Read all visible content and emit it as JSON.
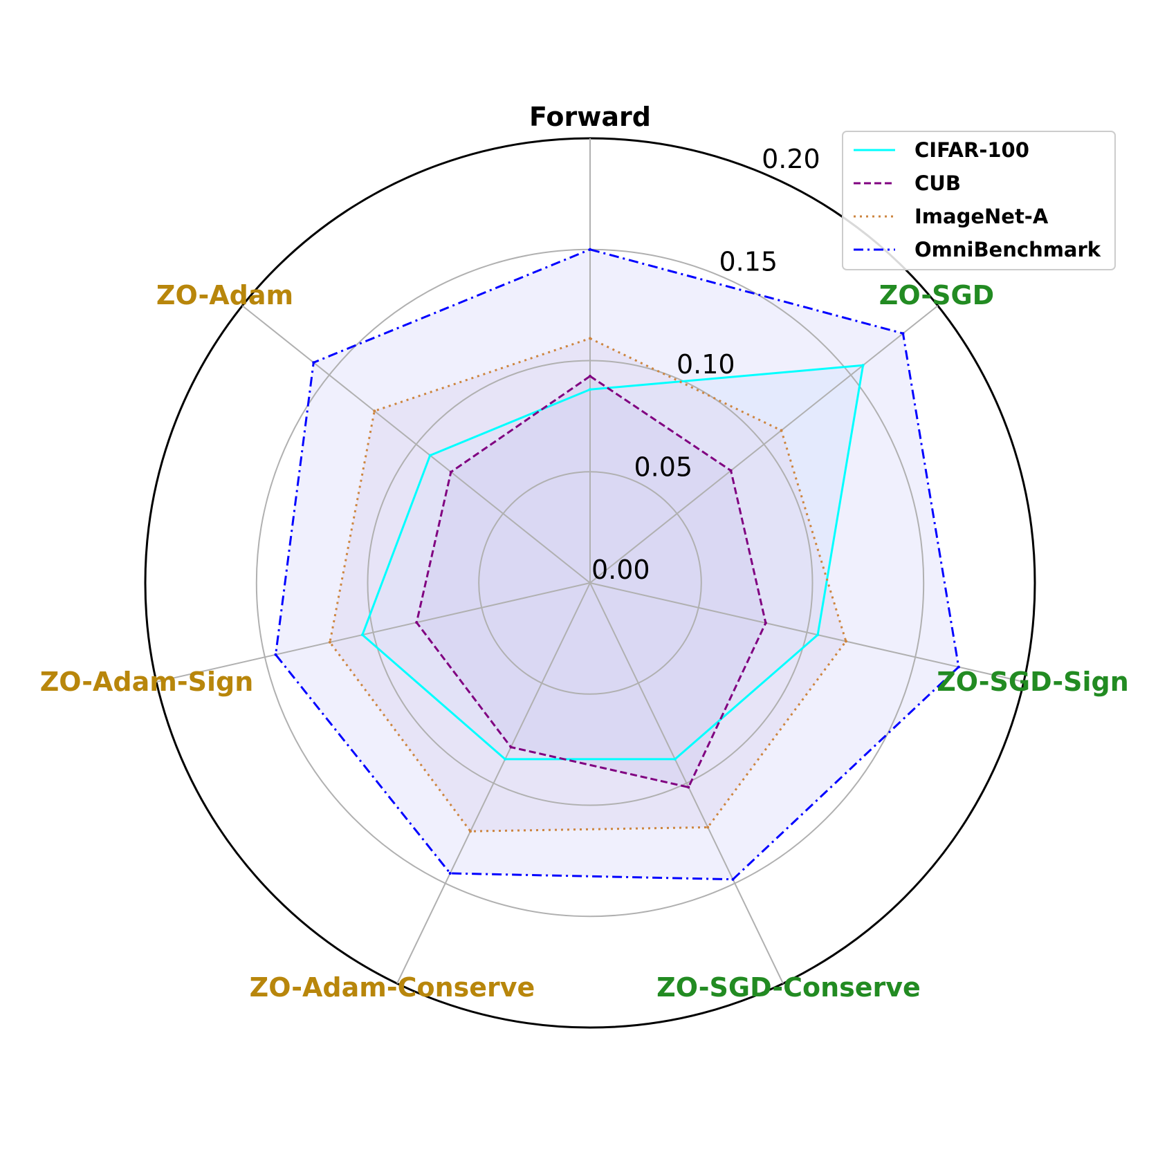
{
  "chart_data": {
    "type": "radar",
    "axes": [
      {
        "label": "Forward",
        "color": "#000000"
      },
      {
        "label": "ZO-SGD",
        "color": "#228b22"
      },
      {
        "label": "ZO-SGD-Sign",
        "color": "#228b22"
      },
      {
        "label": "ZO-SGD-Conserve",
        "color": "#228b22"
      },
      {
        "label": "ZO-Adam-Conserve",
        "color": "#b8860b"
      },
      {
        "label": "ZO-Adam-Sign",
        "color": "#b8860b"
      },
      {
        "label": "ZO-Adam",
        "color": "#b8860b"
      }
    ],
    "rlim": [
      0,
      0.2
    ],
    "rticks": [
      "0.00",
      "0.05",
      "0.10",
      "0.15",
      "0.20"
    ],
    "rtick_values": [
      0,
      0.05,
      0.1,
      0.15,
      0.2
    ],
    "grid": true,
    "legend_position": "top-right",
    "series": [
      {
        "name": "CIFAR-100",
        "color": "#00ffff",
        "dash": "solid",
        "fill": "#cfe6ff",
        "values": [
          0.087,
          0.157,
          0.105,
          0.088,
          0.088,
          0.105,
          0.092
        ]
      },
      {
        "name": "CUB",
        "color": "#800080",
        "dash": "dashed",
        "fill": "#a0a0d8",
        "values": [
          0.093,
          0.081,
          0.081,
          0.102,
          0.082,
          0.08,
          0.08
        ]
      },
      {
        "name": "ImageNet-A",
        "color": "#cd853f",
        "dash": "dotted",
        "fill": "#dcd0e8",
        "values": [
          0.11,
          0.11,
          0.118,
          0.122,
          0.124,
          0.12,
          0.124
        ]
      },
      {
        "name": "OmniBenchmark",
        "color": "#0000ff",
        "dash": "dashdot",
        "fill": "#e4e4fc",
        "values": [
          0.15,
          0.18,
          0.17,
          0.148,
          0.145,
          0.145,
          0.159
        ]
      }
    ]
  }
}
